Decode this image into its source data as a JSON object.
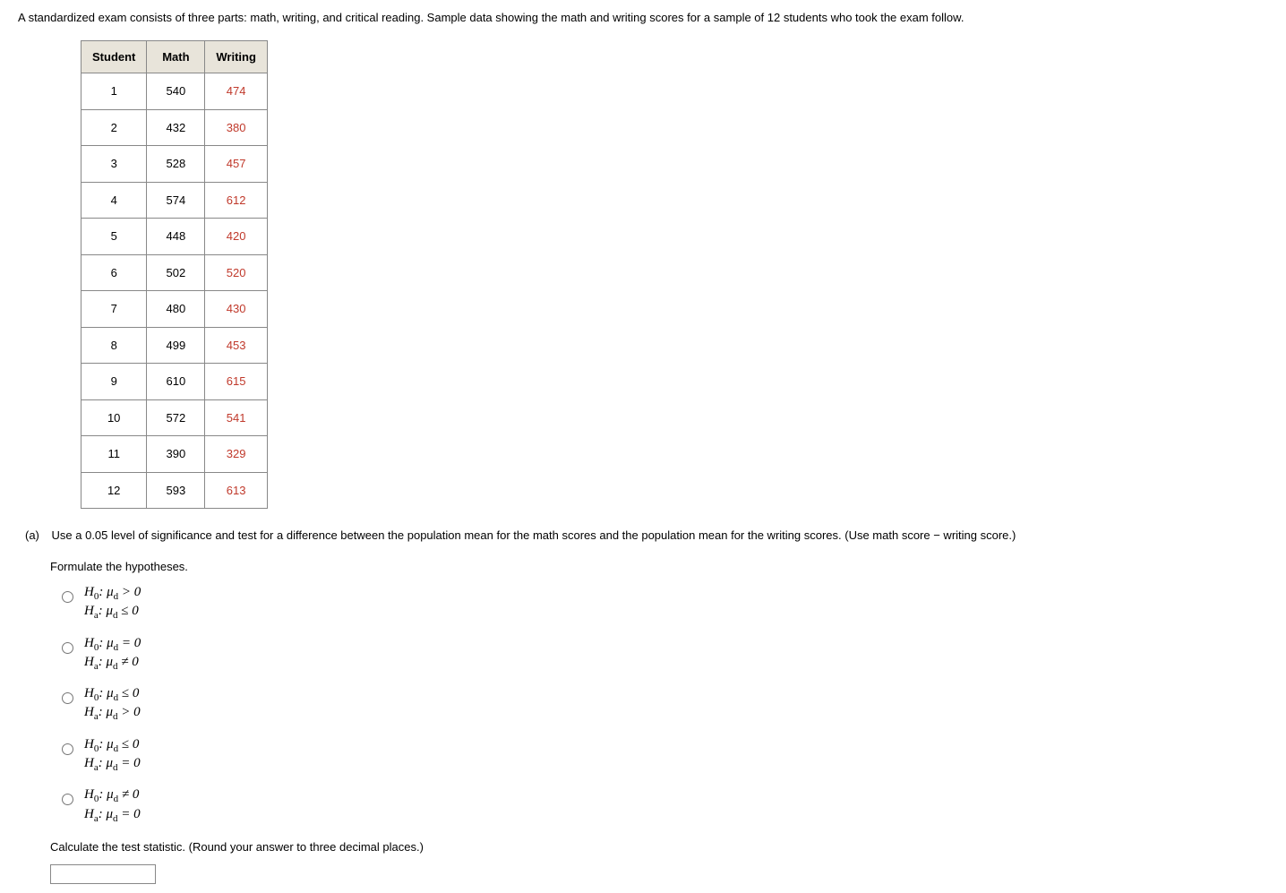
{
  "intro_text": "A standardized exam consists of three parts: math, writing, and critical reading. Sample data showing the math and writing scores for a sample of 12 students who took the exam follow.",
  "table": {
    "headers": [
      "Student",
      "Math",
      "Writing"
    ],
    "header_bg": "#e8e4da",
    "border_color": "#888888",
    "writing_color": "#c0392b",
    "rows": [
      {
        "student": "1",
        "math": "540",
        "writing": "474"
      },
      {
        "student": "2",
        "math": "432",
        "writing": "380"
      },
      {
        "student": "3",
        "math": "528",
        "writing": "457"
      },
      {
        "student": "4",
        "math": "574",
        "writing": "612"
      },
      {
        "student": "5",
        "math": "448",
        "writing": "420"
      },
      {
        "student": "6",
        "math": "502",
        "writing": "520"
      },
      {
        "student": "7",
        "math": "480",
        "writing": "430"
      },
      {
        "student": "8",
        "math": "499",
        "writing": "453"
      },
      {
        "student": "9",
        "math": "610",
        "writing": "615"
      },
      {
        "student": "10",
        "math": "572",
        "writing": "541"
      },
      {
        "student": "11",
        "math": "390",
        "writing": "329"
      },
      {
        "student": "12",
        "math": "593",
        "writing": "613"
      }
    ]
  },
  "part_a": {
    "label": "(a)",
    "text": "Use a 0.05 level of significance and test for a difference between the population mean for the math scores and the population mean for the writing scores. (Use math score − writing score.)"
  },
  "formulate_text": "Formulate the hypotheses.",
  "hypotheses": [
    {
      "h0_op": ">",
      "h0_val": "0",
      "ha_op": "≤",
      "ha_val": "0"
    },
    {
      "h0_op": "=",
      "h0_val": "0",
      "ha_op": "≠",
      "ha_val": "0"
    },
    {
      "h0_op": "≤",
      "h0_val": "0",
      "ha_op": ">",
      "ha_val": "0"
    },
    {
      "h0_op": "≤",
      "h0_val": "0",
      "ha_op": "=",
      "ha_val": "0"
    },
    {
      "h0_op": "≠",
      "h0_val": "0",
      "ha_op": "=",
      "ha_val": "0"
    }
  ],
  "calc_text": "Calculate the test statistic. (Round your answer to three decimal places.)"
}
